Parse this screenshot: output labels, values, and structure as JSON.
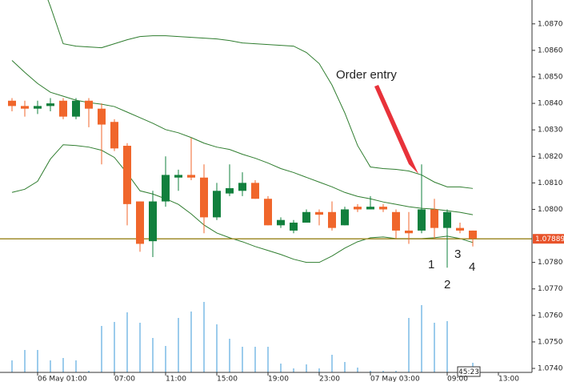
{
  "chart_data": {
    "type": "candlestick",
    "categories": [
      null,
      null,
      "06 May 01:00",
      null,
      null,
      null,
      null,
      null,
      "07:00",
      null,
      null,
      null,
      "11:00",
      null,
      null,
      null,
      "15:00",
      null,
      null,
      null,
      "19:00",
      null,
      null,
      null,
      "23:00",
      null,
      null,
      null,
      "07 May 03:00",
      null,
      null,
      null,
      null,
      null,
      "09:00",
      null,
      null,
      null,
      "13:00",
      null,
      null
    ],
    "open": [
      1.0841,
      1.0839,
      1.0838,
      1.0839,
      1.0841,
      1.0835,
      1.0841,
      1.0838,
      1.0833,
      1.0824,
      1.0803,
      1.0788,
      1.0803,
      1.0812,
      1.0813,
      1.0812,
      1.0797,
      1.0806,
      1.0807,
      1.081,
      1.0804,
      1.0794,
      1.0792,
      1.0795,
      1.0799,
      1.0799,
      1.0794,
      1.0801,
      1.08,
      1.0801,
      1.0799,
      1.0792,
      1.0792,
      1.08,
      1.0793,
      1.0793,
      1.0792,
      null,
      null,
      null,
      null
    ],
    "high": [
      1.0842,
      1.0841,
      1.0841,
      1.0842,
      1.0842,
      1.0842,
      1.0842,
      1.084,
      1.0834,
      1.0825,
      1.0803,
      1.0807,
      1.082,
      1.0815,
      1.0827,
      1.0817,
      1.081,
      1.0817,
      1.0814,
      1.0811,
      1.0805,
      1.0797,
      1.0796,
      1.08,
      1.08,
      1.0803,
      1.0801,
      1.0802,
      1.0805,
      1.0802,
      1.08,
      1.0799,
      1.0817,
      1.0804,
      1.08,
      1.0795,
      1.0792,
      null,
      null,
      null,
      null
    ],
    "low": [
      1.0837,
      1.0835,
      1.0836,
      1.0837,
      1.0834,
      1.0834,
      1.0831,
      1.0817,
      1.0822,
      1.0794,
      1.0784,
      1.0782,
      1.0801,
      1.0807,
      1.0811,
      1.0791,
      1.0796,
      1.0805,
      1.0805,
      1.0804,
      1.0794,
      1.0793,
      1.0791,
      1.0795,
      1.0794,
      1.0792,
      1.0794,
      1.0799,
      1.08,
      1.0799,
      1.0789,
      1.0787,
      1.0791,
      1.0789,
      1.0778,
      1.0791,
      1.0786,
      null,
      null,
      null,
      null
    ],
    "close": [
      1.0839,
      1.0838,
      1.0839,
      1.084,
      1.0835,
      1.0841,
      1.0838,
      1.0832,
      1.0823,
      1.0802,
      1.0787,
      1.0803,
      1.0813,
      1.0813,
      1.0812,
      1.0797,
      1.0807,
      1.0808,
      1.081,
      1.0804,
      1.0794,
      1.0796,
      1.0795,
      1.0799,
      1.0798,
      1.0793,
      1.08,
      1.08,
      1.0801,
      1.08,
      1.0792,
      1.0791,
      1.08,
      1.0793,
      1.0799,
      1.0792,
      1.0789,
      null,
      null,
      null,
      null
    ],
    "up_color": "#11803d",
    "down_color": "#f0662b",
    "bands": [
      {
        "color": "#2f7d2f",
        "values": [
          1.0915,
          1.09021,
          1.08895,
          1.08766,
          1.08625,
          1.08616,
          1.08613,
          1.0861,
          1.08625,
          1.0864,
          1.08652,
          1.08655,
          1.08655,
          1.08652,
          1.08649,
          1.08646,
          1.08643,
          1.08637,
          1.08628,
          1.08625,
          1.08622,
          1.08619,
          1.08616,
          1.08592,
          1.0855,
          1.08469,
          1.08364,
          1.08241,
          1.0816,
          1.08154,
          1.08151,
          1.08145,
          1.0813,
          1.08103,
          1.08085,
          1.08085,
          1.08079,
          null,
          null,
          null,
          null
        ]
      },
      {
        "color": "#2f7d2f",
        "values": [
          1.08562,
          1.08517,
          1.08475,
          1.08442,
          1.08427,
          1.08412,
          1.08403,
          1.08397,
          1.08388,
          1.08367,
          1.08346,
          1.08325,
          1.08301,
          1.08289,
          1.08271,
          1.0825,
          1.08235,
          1.08226,
          1.08208,
          1.08193,
          1.08175,
          1.08154,
          1.08139,
          1.08121,
          1.08103,
          1.08085,
          1.08064,
          1.08049,
          1.0804,
          1.08028,
          1.08019,
          1.0801,
          1.08004,
          1.08001,
          1.07995,
          1.07989,
          1.0798,
          null,
          null,
          null,
          null
        ]
      },
      {
        "color": "#2f7d2f",
        "values": [
          1.08064,
          1.08076,
          1.08106,
          1.0819,
          1.08244,
          1.08241,
          1.08235,
          1.08223,
          1.08196,
          1.08136,
          1.0807,
          1.08058,
          1.0804,
          1.08019,
          1.07983,
          1.07941,
          1.07911,
          1.07893,
          1.07878,
          1.0786,
          1.07845,
          1.0783,
          1.07812,
          1.078,
          1.078,
          1.07824,
          1.07854,
          1.07878,
          1.07893,
          1.07896,
          1.0789,
          1.0789,
          1.0789,
          1.07893,
          1.07899,
          1.0789,
          1.07875,
          null,
          null,
          null,
          null
        ]
      }
    ],
    "volume": {
      "color": "#3a9ad9",
      "values": [
        15,
        28,
        28,
        15,
        18,
        15,
        2,
        58,
        63,
        75,
        62,
        43,
        33,
        68,
        76,
        88,
        60,
        42,
        32,
        32,
        32,
        11,
        5,
        10,
        5,
        22,
        13,
        6,
        2,
        2,
        2,
        68,
        84,
        62,
        64,
        3,
        12,
        null,
        null,
        null,
        null
      ]
    },
    "current_price": 1.07889,
    "price_line_color": "#a08d2e",
    "ylim": [
      1.07385,
      1.0879
    ],
    "yticks": [
      {
        "value": 1.087,
        "label": "1.0870"
      },
      {
        "value": 1.086,
        "label": "1.0860"
      },
      {
        "value": 1.085,
        "label": "1.0850"
      },
      {
        "value": 1.084,
        "label": "1.0840"
      },
      {
        "value": 1.083,
        "label": "1.0830"
      },
      {
        "value": 1.082,
        "label": "1.0820"
      },
      {
        "value": 1.081,
        "label": "1.0810"
      },
      {
        "value": 1.08,
        "label": "1.0800"
      },
      {
        "value": 1.078,
        "label": "1.0780"
      },
      {
        "value": 1.077,
        "label": "1.0770"
      },
      {
        "value": 1.076,
        "label": "1.0760"
      },
      {
        "value": 1.075,
        "label": "1.0750"
      },
      {
        "value": 1.074,
        "label": "1.0740"
      }
    ],
    "annotation": "Order entry",
    "markers": [
      "1",
      "2",
      "3",
      "4"
    ],
    "timer": "45:23"
  }
}
